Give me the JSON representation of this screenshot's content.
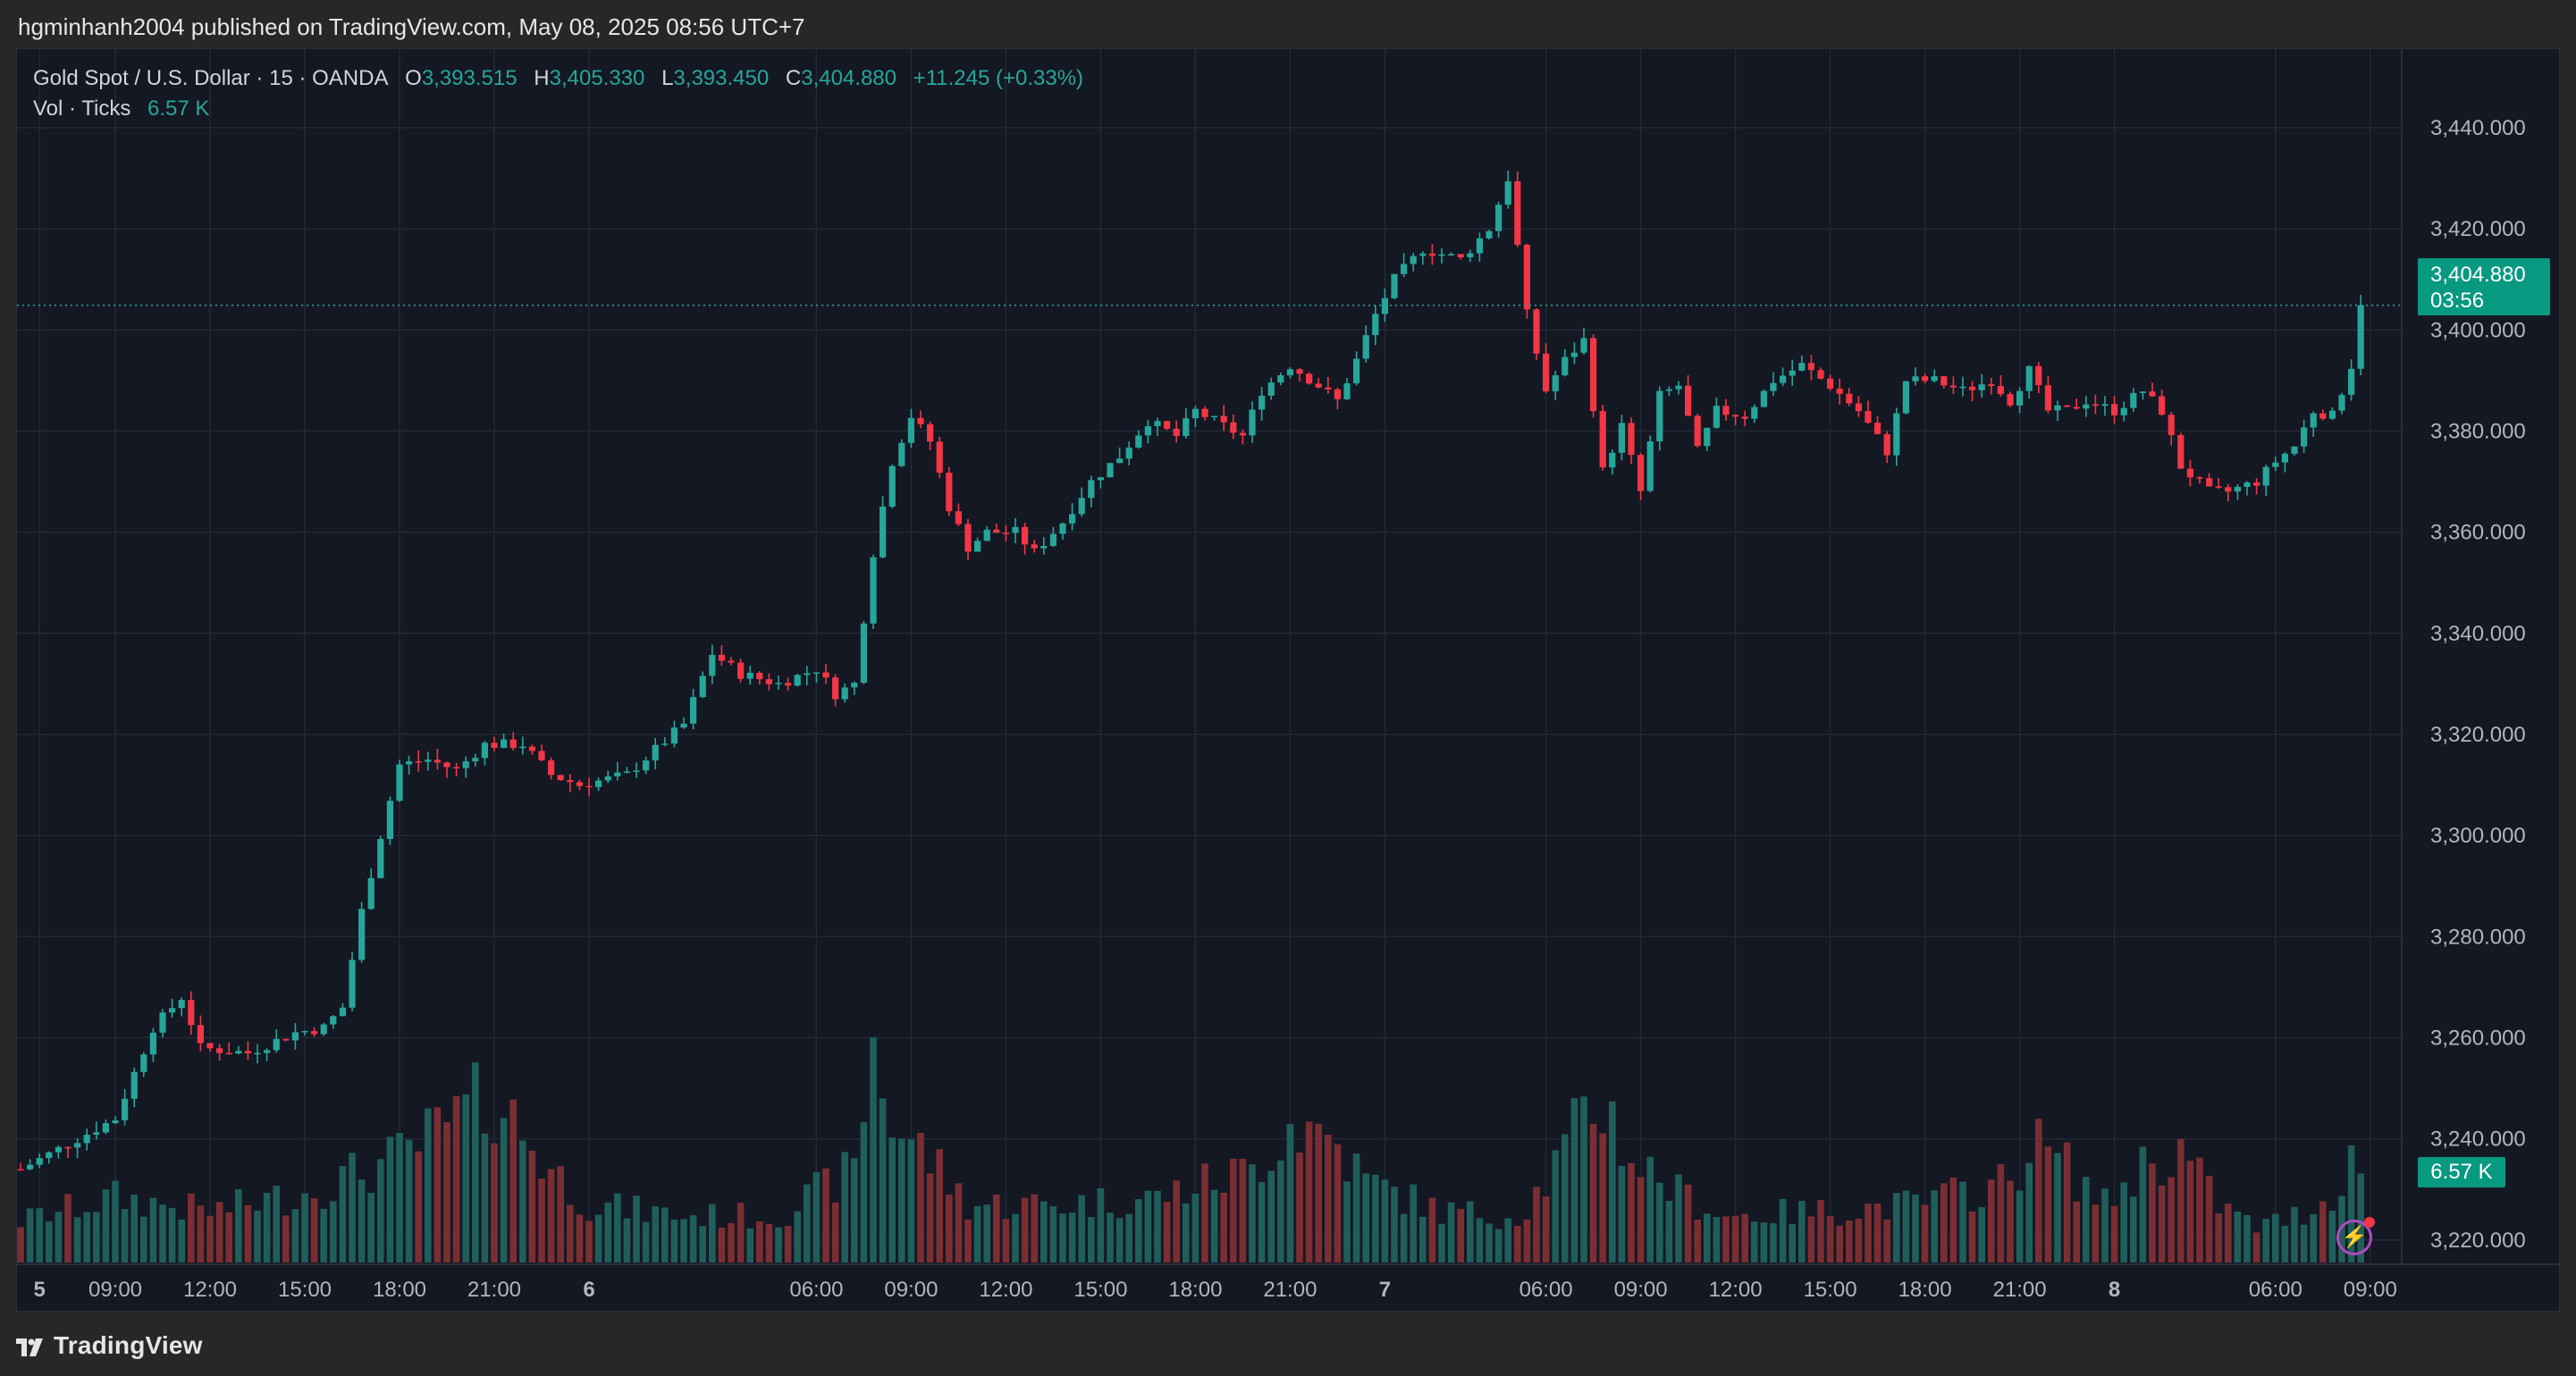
{
  "header": {
    "publisher": "hgminhanh2004 published on TradingView.com, May 08, 2025 08:56 UTC+7"
  },
  "legend": {
    "symbol": "Gold Spot / U.S. Dollar · 15 · OANDA",
    "o_label": "O",
    "o": "3,393.515",
    "h_label": "H",
    "h": "3,405.330",
    "l_label": "L",
    "l": "3,393.450",
    "c_label": "C",
    "c": "3,404.880",
    "change": "+11.245 (+0.33%)",
    "vol_label": "Vol · Ticks",
    "vol_value": "6.57 K"
  },
  "price_tag": {
    "price": "3,404.880",
    "countdown": "03:56"
  },
  "volume_tag": "6.57 K",
  "footer": {
    "brand": "TradingView"
  },
  "colors": {
    "up": "#26a69a",
    "down": "#f23645",
    "up_volume": "#1f5e5b",
    "down_volume": "#7a2e33",
    "background": "#141823",
    "grid": "#232835"
  },
  "icons": {
    "alert": "lightning-icon",
    "logo": "tradingview-logo-icon"
  },
  "chart_data": {
    "type": "candlestick",
    "interval": "15",
    "ylim": [
      3209,
      3449
    ],
    "y_ticks": [
      "3,440.000",
      "3,420.000",
      "3,400.000",
      "3,380.000",
      "3,360.000",
      "3,340.000",
      "3,320.000",
      "3,300.000",
      "3,280.000",
      "3,260.000",
      "3,240.000",
      "3,220.000"
    ],
    "y_tick_values": [
      3440,
      3420,
      3400,
      3380,
      3360,
      3340,
      3320,
      3300,
      3280,
      3260,
      3240,
      3220
    ],
    "x_ticks": [
      {
        "label": "5",
        "bar": 2
      },
      {
        "label": "09:00",
        "bar": 10
      },
      {
        "label": "12:00",
        "bar": 20
      },
      {
        "label": "15:00",
        "bar": 30
      },
      {
        "label": "18:00",
        "bar": 40
      },
      {
        "label": "21:00",
        "bar": 50
      },
      {
        "label": "6",
        "bar": 60
      },
      {
        "label": "06:00",
        "bar": 84
      },
      {
        "label": "09:00",
        "bar": 94
      },
      {
        "label": "12:00",
        "bar": 104
      },
      {
        "label": "15:00",
        "bar": 114
      },
      {
        "label": "18:00",
        "bar": 124
      },
      {
        "label": "21:00",
        "bar": 134
      },
      {
        "label": "7",
        "bar": 144
      },
      {
        "label": "06:00",
        "bar": 161
      },
      {
        "label": "09:00",
        "bar": 171
      },
      {
        "label": "12:00",
        "bar": 181
      },
      {
        "label": "15:00",
        "bar": 191
      },
      {
        "label": "18:00",
        "bar": 201
      },
      {
        "label": "21:00",
        "bar": 211
      },
      {
        "label": "8",
        "bar": 221
      },
      {
        "label": "06:00",
        "bar": 238
      },
      {
        "label": "09:00",
        "bar": 248
      }
    ],
    "last_price": 3404.88,
    "anchors": [
      [
        0,
        3234
      ],
      [
        8,
        3242
      ],
      [
        10,
        3244
      ],
      [
        14,
        3262
      ],
      [
        17,
        3268
      ],
      [
        19,
        3258
      ],
      [
        24,
        3257
      ],
      [
        29,
        3261
      ],
      [
        32,
        3262
      ],
      [
        34,
        3266
      ],
      [
        36,
        3285
      ],
      [
        38,
        3300
      ],
      [
        40,
        3314
      ],
      [
        43,
        3315
      ],
      [
        46,
        3313
      ],
      [
        49,
        3318
      ],
      [
        53,
        3318
      ],
      [
        56,
        3312
      ],
      [
        59,
        3310
      ],
      [
        64,
        3312
      ],
      [
        70,
        3322
      ],
      [
        73,
        3336
      ],
      [
        76,
        3332
      ],
      [
        80,
        3330
      ],
      [
        84,
        3333
      ],
      [
        86,
        3328
      ],
      [
        88,
        3330
      ],
      [
        90,
        3356
      ],
      [
        92,
        3374
      ],
      [
        94,
        3383
      ],
      [
        96,
        3378
      ],
      [
        98,
        3365
      ],
      [
        100,
        3357
      ],
      [
        102,
        3360
      ],
      [
        105,
        3360
      ],
      [
        107,
        3356
      ],
      [
        110,
        3362
      ],
      [
        113,
        3370
      ],
      [
        116,
        3375
      ],
      [
        119,
        3382
      ],
      [
        122,
        3379
      ],
      [
        124,
        3384
      ],
      [
        126,
        3382
      ],
      [
        129,
        3379
      ],
      [
        131,
        3388
      ],
      [
        134,
        3393
      ],
      [
        137,
        3389
      ],
      [
        139,
        3386
      ],
      [
        141,
        3394
      ],
      [
        143,
        3403
      ],
      [
        145,
        3410
      ],
      [
        148,
        3416
      ],
      [
        152,
        3414
      ],
      [
        155,
        3420
      ],
      [
        157,
        3430
      ],
      [
        159,
        3403
      ],
      [
        161,
        3388
      ],
      [
        163,
        3394
      ],
      [
        165,
        3398
      ],
      [
        167,
        3372
      ],
      [
        169,
        3381
      ],
      [
        171,
        3368
      ],
      [
        173,
        3387
      ],
      [
        175,
        3389
      ],
      [
        177,
        3376
      ],
      [
        179,
        3384
      ],
      [
        182,
        3383
      ],
      [
        185,
        3390
      ],
      [
        188,
        3393
      ],
      [
        191,
        3389
      ],
      [
        194,
        3384
      ],
      [
        197,
        3376
      ],
      [
        199,
        3390
      ],
      [
        202,
        3390
      ],
      [
        205,
        3388
      ],
      [
        208,
        3390
      ],
      [
        210,
        3386
      ],
      [
        212,
        3392
      ],
      [
        214,
        3384
      ],
      [
        216,
        3384
      ],
      [
        218,
        3386
      ],
      [
        221,
        3384
      ],
      [
        224,
        3388
      ],
      [
        226,
        3384
      ],
      [
        228,
        3373
      ],
      [
        231,
        3368
      ],
      [
        233,
        3368
      ],
      [
        236,
        3370
      ],
      [
        238,
        3374
      ],
      [
        240,
        3377
      ],
      [
        242,
        3384
      ],
      [
        244,
        3383
      ],
      [
        246,
        3393
      ],
      [
        247,
        3404.88
      ]
    ],
    "volume_anchors": [
      [
        0,
        18
      ],
      [
        10,
        28
      ],
      [
        20,
        22
      ],
      [
        30,
        30
      ],
      [
        40,
        45
      ],
      [
        50,
        72
      ],
      [
        56,
        40
      ],
      [
        60,
        25
      ],
      [
        70,
        20
      ],
      [
        80,
        20
      ],
      [
        88,
        40
      ],
      [
        90,
        95
      ],
      [
        92,
        60
      ],
      [
        96,
        45
      ],
      [
        100,
        25
      ],
      [
        110,
        25
      ],
      [
        120,
        28
      ],
      [
        130,
        40
      ],
      [
        134,
        60
      ],
      [
        138,
        55
      ],
      [
        142,
        35
      ],
      [
        150,
        22
      ],
      [
        158,
        20
      ],
      [
        161,
        35
      ],
      [
        165,
        62
      ],
      [
        167,
        70
      ],
      [
        170,
        45
      ],
      [
        175,
        30
      ],
      [
        180,
        20
      ],
      [
        190,
        22
      ],
      [
        200,
        25
      ],
      [
        210,
        35
      ],
      [
        212,
        52
      ],
      [
        215,
        45
      ],
      [
        220,
        25
      ],
      [
        224,
        42
      ],
      [
        228,
        48
      ],
      [
        232,
        25
      ],
      [
        236,
        15
      ],
      [
        240,
        20
      ],
      [
        244,
        28
      ],
      [
        246,
        50
      ],
      [
        247,
        33
      ]
    ]
  }
}
